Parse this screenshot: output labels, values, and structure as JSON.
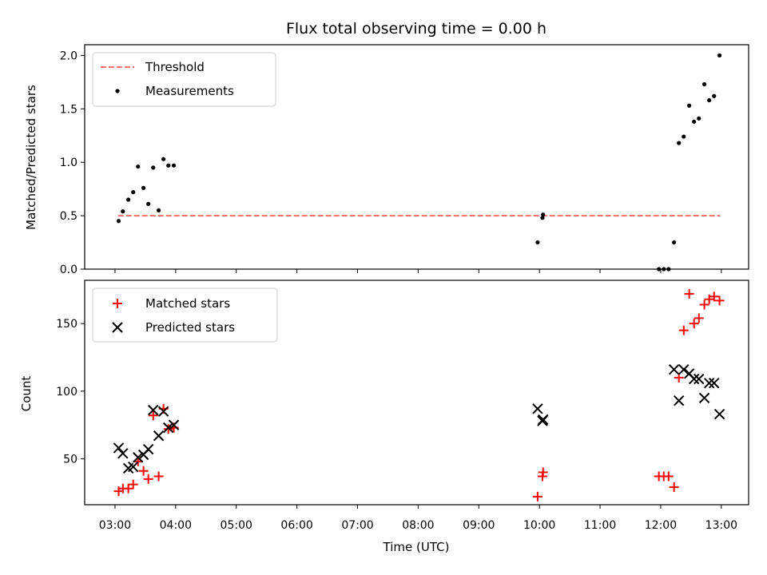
{
  "chart_data": {
    "type": "scatter",
    "title": "Flux total observing time = 0.00 h",
    "xlabel": "Time (UTC)",
    "x_ticks": [
      "03:00",
      "04:00",
      "05:00",
      "06:00",
      "07:00",
      "08:00",
      "09:00",
      "10:00",
      "11:00",
      "12:00",
      "13:00"
    ],
    "x_range_hours": [
      2.5,
      13.45
    ],
    "panels": [
      {
        "ylabel": "Matched/Predicted stars",
        "ylim": [
          0.0,
          2.1
        ],
        "y_ticks": [
          "0.0",
          "0.5",
          "1.0",
          "1.5",
          "2.0"
        ],
        "legend": {
          "position": "upper left"
        },
        "threshold": {
          "name": "Threshold",
          "value": 0.5,
          "x_from": 3.05,
          "x_to": 12.98,
          "color": "#ff7070"
        },
        "series": [
          {
            "name": "Measurements",
            "marker": "dot",
            "color": "#000000",
            "points": [
              [
                3.06,
                0.45
              ],
              [
                3.13,
                0.54
              ],
              [
                3.22,
                0.65
              ],
              [
                3.3,
                0.72
              ],
              [
                3.38,
                0.96
              ],
              [
                3.47,
                0.76
              ],
              [
                3.55,
                0.61
              ],
              [
                3.63,
                0.95
              ],
              [
                3.72,
                0.55
              ],
              [
                3.8,
                1.03
              ],
              [
                3.88,
                0.97
              ],
              [
                3.97,
                0.97
              ],
              [
                9.97,
                0.25
              ],
              [
                10.05,
                0.48
              ],
              [
                10.06,
                0.51
              ],
              [
                11.97,
                0.0
              ],
              [
                12.05,
                0.0
              ],
              [
                12.13,
                0.0
              ],
              [
                12.22,
                0.25
              ],
              [
                12.3,
                1.18
              ],
              [
                12.38,
                1.24
              ],
              [
                12.47,
                1.53
              ],
              [
                12.55,
                1.38
              ],
              [
                12.63,
                1.41
              ],
              [
                12.72,
                1.73
              ],
              [
                12.8,
                1.58
              ],
              [
                12.88,
                1.62
              ],
              [
                12.97,
                2.0
              ]
            ]
          }
        ]
      },
      {
        "ylabel": "Count",
        "ylim": [
          16,
          182
        ],
        "y_ticks": [
          "50",
          "100",
          "150"
        ],
        "legend": {
          "position": "upper left"
        },
        "series": [
          {
            "name": "Matched stars",
            "marker": "plus",
            "color": "#ff0000",
            "points": [
              [
                3.06,
                26
              ],
              [
                3.13,
                28
              ],
              [
                3.22,
                28
              ],
              [
                3.3,
                31
              ],
              [
                3.38,
                48
              ],
              [
                3.47,
                41
              ],
              [
                3.55,
                35
              ],
              [
                3.63,
                82
              ],
              [
                3.72,
                37
              ],
              [
                3.8,
                87
              ],
              [
                3.88,
                72
              ],
              [
                3.97,
                73
              ],
              [
                9.97,
                22
              ],
              [
                10.05,
                37
              ],
              [
                10.06,
                40
              ],
              [
                11.97,
                37
              ],
              [
                12.05,
                37
              ],
              [
                12.13,
                37
              ],
              [
                12.22,
                29
              ],
              [
                12.3,
                110
              ],
              [
                12.38,
                145
              ],
              [
                12.47,
                172
              ],
              [
                12.55,
                150
              ],
              [
                12.63,
                154
              ],
              [
                12.72,
                164
              ],
              [
                12.8,
                168
              ],
              [
                12.88,
                170
              ],
              [
                12.97,
                167
              ]
            ]
          },
          {
            "name": "Predicted stars",
            "marker": "x",
            "color": "#000000",
            "points": [
              [
                3.06,
                58
              ],
              [
                3.13,
                54
              ],
              [
                3.22,
                43
              ],
              [
                3.3,
                44
              ],
              [
                3.38,
                51
              ],
              [
                3.47,
                53
              ],
              [
                3.55,
                57
              ],
              [
                3.63,
                86
              ],
              [
                3.72,
                67
              ],
              [
                3.8,
                85
              ],
              [
                3.88,
                73
              ],
              [
                3.97,
                75
              ],
              [
                9.97,
                87
              ],
              [
                10.05,
                78
              ],
              [
                10.06,
                79
              ],
              [
                12.22,
                116
              ],
              [
                12.3,
                93
              ],
              [
                12.38,
                116
              ],
              [
                12.47,
                113
              ],
              [
                12.55,
                109
              ],
              [
                12.63,
                109
              ],
              [
                12.72,
                95
              ],
              [
                12.8,
                106
              ],
              [
                12.88,
                106
              ],
              [
                12.97,
                83
              ]
            ]
          }
        ]
      }
    ]
  }
}
